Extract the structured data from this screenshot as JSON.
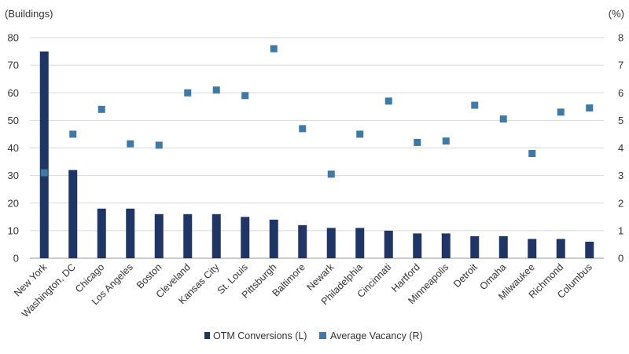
{
  "chart_data": {
    "type": "bar",
    "title": "",
    "ylabel_left": "(Buildings)",
    "ylabel_right": "(%)",
    "categories": [
      "New York",
      "Washington, DC",
      "Chicago",
      "Los Angeles",
      "Boston",
      "Cleveland",
      "Kansas City",
      "St. Louis",
      "Pittsburgh",
      "Baltimore",
      "Newark",
      "Philadelphia",
      "Cincinnati",
      "Hartford",
      "Minneapolis",
      "Detroit",
      "Omaha",
      "Milwaukee",
      "Richmond",
      "Columbus"
    ],
    "series": [
      {
        "name": "OTM Conversions (L)",
        "type": "bar",
        "axis": "left",
        "color": "#1f3566",
        "values": [
          75,
          32,
          18,
          18,
          16,
          16,
          16,
          15,
          14,
          12,
          11,
          11,
          10,
          9,
          9,
          8,
          8,
          7,
          7,
          6
        ]
      },
      {
        "name": "Average Vacancy (R)",
        "type": "scatter",
        "axis": "right",
        "color": "#3d7aa8",
        "values": [
          3.1,
          4.5,
          5.4,
          4.15,
          4.1,
          6.0,
          6.1,
          5.9,
          7.6,
          4.7,
          3.05,
          4.5,
          5.7,
          4.2,
          4.25,
          5.55,
          5.05,
          3.8,
          5.3,
          5.45
        ]
      }
    ],
    "ylim_left": [
      0,
      80
    ],
    "yticks_left": [
      "0",
      "10",
      "20",
      "30",
      "40",
      "50",
      "60",
      "70",
      "80"
    ],
    "ylim_right": [
      0,
      8
    ],
    "yticks_right": [
      "0",
      "1",
      "2",
      "3",
      "4",
      "5",
      "6",
      "7",
      "8"
    ],
    "grid": true,
    "legend_position": "bottom-center"
  }
}
